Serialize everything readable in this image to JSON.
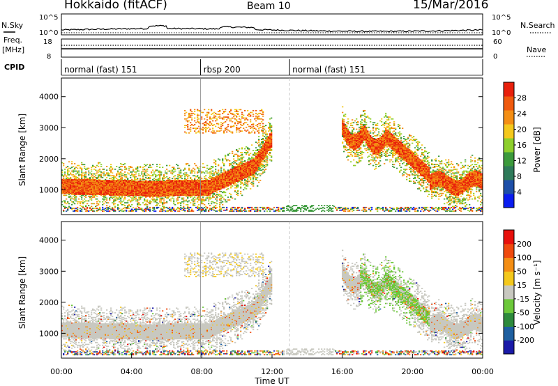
{
  "header": {
    "radar": "Hokkaido (fitACF)",
    "beam": "Beam 10",
    "date": "15/Mar/2016"
  },
  "top_panels": {
    "nsky_label": "N.Sky",
    "nsearch_label": "N.Search",
    "noise_ticks": [
      "10^5",
      "10^0"
    ],
    "freq_label_1": "Freq.",
    "freq_label_2": "[MHz]",
    "freq_ticks": [
      "18",
      "8"
    ],
    "nave_label": "Nave",
    "nave_ticks": [
      "60",
      "0"
    ],
    "cpid_label": "CPID",
    "cpid_segments": [
      {
        "label": "normal (fast) 151",
        "start": 0
      },
      {
        "label": "rbsp 200",
        "start": 7.93
      },
      {
        "label": "normal (fast) 151",
        "start": 13.0
      }
    ]
  },
  "colors": {
    "power": [
      "#0a1cf0",
      "#1e4fa8",
      "#2f7a5a",
      "#3c9a3c",
      "#8ecf2c",
      "#f4c81c",
      "#f48e14",
      "#f05a0e",
      "#e8200c"
    ],
    "velocity": [
      "#1a1aa8",
      "#1e5fa0",
      "#2d8a3c",
      "#6cc83a",
      "#c8c8c0",
      "#f4c81c",
      "#f48e14",
      "#f04a0e",
      "#e8100c"
    ]
  },
  "chart_data": [
    {
      "type": "heatmap",
      "name": "power",
      "ylabel": "Slant Range [km]",
      "yticks": [
        1000,
        2000,
        3000,
        4000
      ],
      "ylim": [
        200,
        4600
      ],
      "colorbar_label": "Power [dB]",
      "colorbar_ticks": [
        "4",
        "8",
        "12",
        "16",
        "20",
        "24",
        "28"
      ],
      "xlim_hours": [
        0,
        24
      ],
      "dashed_line_hour": 13.0,
      "solid_line_hour": 7.93
    },
    {
      "type": "heatmap",
      "name": "velocity",
      "ylabel": "Slant Range [km]",
      "yticks": [
        1000,
        2000,
        3000,
        4000
      ],
      "ylim": [
        200,
        4600
      ],
      "colorbar_label": "Velocity [m s⁻¹]",
      "colorbar_ticks": [
        "200",
        "100",
        "50",
        "15",
        "-15",
        "-50",
        "-100",
        "-200"
      ],
      "xlim_hours": [
        0,
        24
      ],
      "xticks": [
        "00:00",
        "04:00",
        "08:00",
        "12:00",
        "16:00",
        "20:00",
        "00:00"
      ],
      "xlabel": "Time UT"
    }
  ]
}
